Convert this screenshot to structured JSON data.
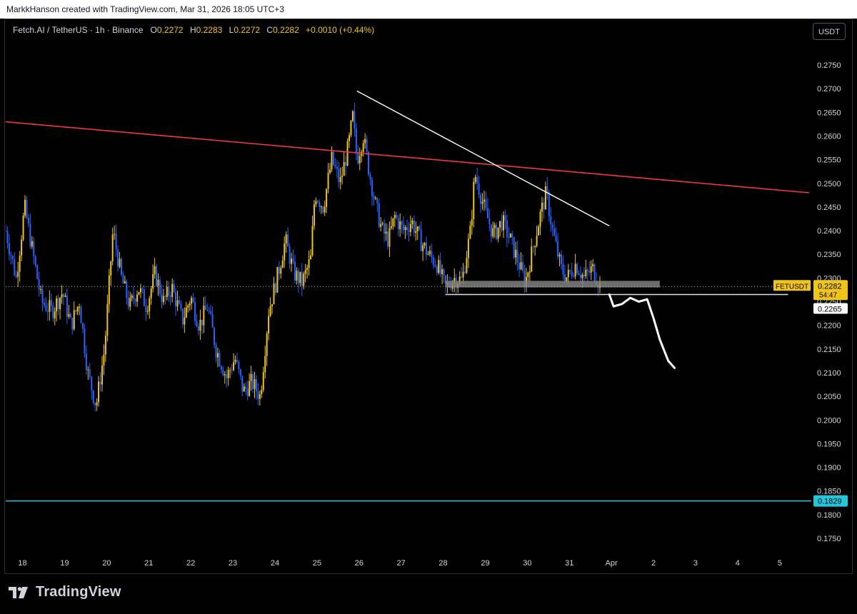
{
  "header": {
    "credit": "MarkkHanson created with TradingView.com, Mar 31, 2026 18:05 UTC+3",
    "symbol": "Fetch.AI / TetherUS · 1h · Binance",
    "o_label": "O",
    "o_value": "0.2272",
    "h_label": "H",
    "h_value": "0.2283",
    "l_label": "L",
    "l_value": "0.2272",
    "c_label": "C",
    "c_value": "0.2282",
    "change": "+0.0010 (+0.44%)",
    "currency_button": "USDT"
  },
  "brand": {
    "name": "TradingView",
    "icon": "tradingview-logo-icon"
  },
  "colors": {
    "background": "#000000",
    "bull": "#f0c419",
    "bear": "#2962ff",
    "resistance": "#f23645",
    "trendline": "#ffffff",
    "support_line": "#26c6da",
    "zone": "#808080"
  },
  "chart_data": {
    "type": "candlestick",
    "symbol": "FETUSDT",
    "interval": "1h",
    "y_range": [
      0.171,
      0.28
    ],
    "y_ticks": [
      "0.2750",
      "0.2700",
      "0.2650",
      "0.2600",
      "0.2550",
      "0.2500",
      "0.2450",
      "0.2400",
      "0.2350",
      "0.2300",
      "0.2250",
      "0.2200",
      "0.2150",
      "0.2100",
      "0.2050",
      "0.2000",
      "0.1950",
      "0.1900",
      "0.1850",
      "0.1800",
      "0.1750"
    ],
    "x_ticks": [
      "18",
      "19",
      "20",
      "21",
      "22",
      "23",
      "24",
      "25",
      "26",
      "27",
      "28",
      "29",
      "30",
      "31",
      "Apr",
      "2",
      "3",
      "4",
      "5"
    ],
    "x_range_days": [
      17.6,
      36.7
    ],
    "last_price_label": "FETUSDT",
    "last_price": "0.2282",
    "countdown": "54:47",
    "support_price": "0.2265",
    "target_price": "0.1829",
    "price_path": [
      [
        17.6,
        0.24
      ],
      [
        17.85,
        0.23
      ],
      [
        18.05,
        0.245
      ],
      [
        18.25,
        0.235
      ],
      [
        18.45,
        0.225
      ],
      [
        18.7,
        0.223
      ],
      [
        18.95,
        0.227
      ],
      [
        19.15,
        0.22
      ],
      [
        19.35,
        0.225
      ],
      [
        19.55,
        0.21
      ],
      [
        19.75,
        0.203
      ],
      [
        19.95,
        0.215
      ],
      [
        20.15,
        0.24
      ],
      [
        20.35,
        0.23
      ],
      [
        20.55,
        0.224
      ],
      [
        20.75,
        0.228
      ],
      [
        20.95,
        0.224
      ],
      [
        21.15,
        0.231
      ],
      [
        21.35,
        0.225
      ],
      [
        21.55,
        0.228
      ],
      [
        21.8,
        0.221
      ],
      [
        22.0,
        0.226
      ],
      [
        22.2,
        0.22
      ],
      [
        22.4,
        0.224
      ],
      [
        22.6,
        0.215
      ],
      [
        22.85,
        0.209
      ],
      [
        23.05,
        0.213
      ],
      [
        23.25,
        0.206
      ],
      [
        23.45,
        0.208
      ],
      [
        23.65,
        0.205
      ],
      [
        23.85,
        0.223
      ],
      [
        24.05,
        0.23
      ],
      [
        24.25,
        0.238
      ],
      [
        24.45,
        0.231
      ],
      [
        24.65,
        0.229
      ],
      [
        24.85,
        0.234
      ],
      [
        24.95,
        0.248
      ],
      [
        25.15,
        0.245
      ],
      [
        25.35,
        0.255
      ],
      [
        25.55,
        0.25
      ],
      [
        25.75,
        0.258
      ],
      [
        25.85,
        0.264
      ],
      [
        25.95,
        0.255
      ],
      [
        26.1,
        0.26
      ],
      [
        26.25,
        0.252
      ],
      [
        26.4,
        0.245
      ],
      [
        26.55,
        0.24
      ],
      [
        26.7,
        0.238
      ],
      [
        26.85,
        0.243
      ],
      [
        27.05,
        0.24
      ],
      [
        27.25,
        0.242
      ],
      [
        27.45,
        0.238
      ],
      [
        27.65,
        0.235
      ],
      [
        27.85,
        0.233
      ],
      [
        28.05,
        0.228
      ],
      [
        28.25,
        0.23
      ],
      [
        28.45,
        0.2295
      ],
      [
        28.65,
        0.24
      ],
      [
        28.75,
        0.252
      ],
      [
        28.85,
        0.249
      ],
      [
        29.0,
        0.244
      ],
      [
        29.2,
        0.239
      ],
      [
        29.4,
        0.242
      ],
      [
        29.6,
        0.238
      ],
      [
        29.8,
        0.233
      ],
      [
        29.95,
        0.229
      ],
      [
        30.1,
        0.235
      ],
      [
        30.3,
        0.243
      ],
      [
        30.45,
        0.248
      ],
      [
        30.6,
        0.24
      ],
      [
        30.8,
        0.232
      ],
      [
        30.95,
        0.23
      ],
      [
        31.15,
        0.233
      ],
      [
        31.35,
        0.23
      ],
      [
        31.55,
        0.232
      ],
      [
        31.75,
        0.2282
      ]
    ],
    "annotations": {
      "resistance_line": [
        [
          17.6,
          0.263
        ],
        [
          36.7,
          0.248
        ]
      ],
      "down_trendline": [
        [
          25.95,
          0.2695
        ],
        [
          31.95,
          0.241
        ]
      ],
      "support_zone": {
        "x": [
          28.05,
          33.15
        ],
        "y": [
          0.228,
          0.2294
        ]
      },
      "support_line": {
        "x": [
          28.05,
          36.2
        ],
        "price": 0.2265
      },
      "target_line": {
        "price": 0.1829
      },
      "projection_path": [
        [
          31.95,
          0.2265
        ],
        [
          32.05,
          0.224
        ],
        [
          32.25,
          0.2245
        ],
        [
          32.45,
          0.2258
        ],
        [
          32.65,
          0.225
        ],
        [
          32.85,
          0.2255
        ],
        [
          33.0,
          0.2215
        ],
        [
          33.15,
          0.217
        ],
        [
          33.35,
          0.2125
        ],
        [
          33.5,
          0.211
        ]
      ]
    }
  }
}
